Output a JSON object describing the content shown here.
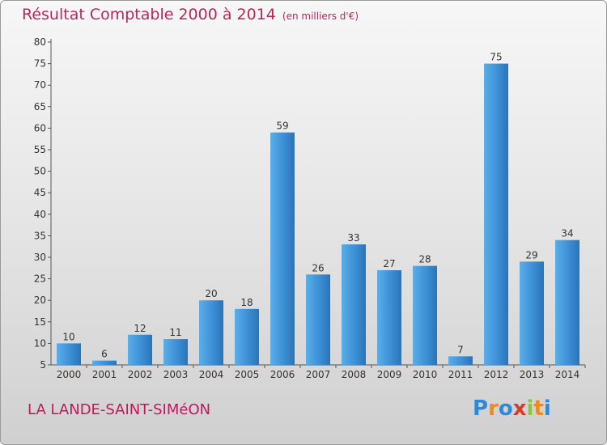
{
  "chart_data": {
    "type": "bar",
    "title": "Résultat Comptable 2000 à 2014",
    "subtitle": "(en milliers d'€)",
    "categories": [
      "2000",
      "2001",
      "2002",
      "2003",
      "2004",
      "2005",
      "2006",
      "2007",
      "2008",
      "2009",
      "2010",
      "2011",
      "2012",
      "2013",
      "2014"
    ],
    "values": [
      10,
      6,
      12,
      11,
      20,
      18,
      59,
      26,
      33,
      27,
      28,
      7,
      75,
      29,
      34
    ],
    "ylim": [
      5,
      80
    ],
    "yticks": [
      5,
      10,
      15,
      20,
      25,
      30,
      35,
      40,
      45,
      50,
      55,
      60,
      65,
      70,
      75,
      80
    ],
    "xlabel": "",
    "ylabel": "",
    "grid": false,
    "bar_color": "#3d8fd6"
  },
  "location": "LA LANDE-SAINT-SIMéON",
  "logo": {
    "letters": [
      "P",
      "r",
      "o",
      "x",
      "i",
      "t",
      "i"
    ],
    "colors": [
      "#2e8ad8",
      "#f08a1c",
      "#2e8ad8",
      "#d93a2b",
      "#8cc63f",
      "#f08a1c",
      "#2e8ad8"
    ]
  }
}
